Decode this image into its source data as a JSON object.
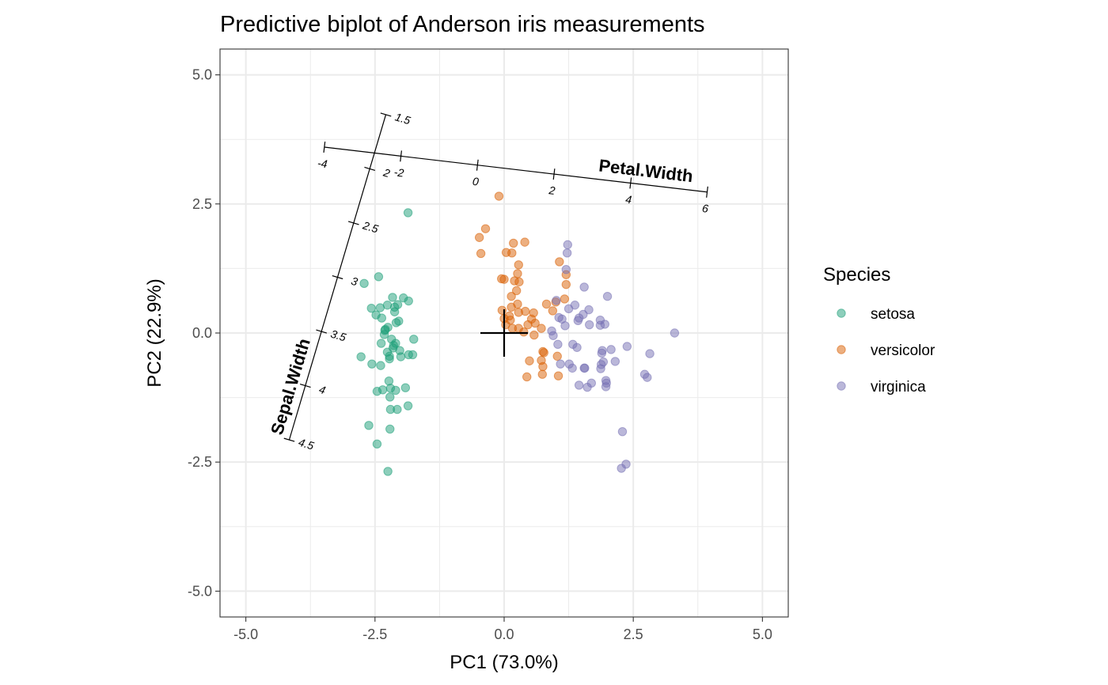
{
  "chart_data": {
    "type": "scatter",
    "title": "Predictive biplot of Anderson iris measurements",
    "xlabel": "PC1 (73.0%)",
    "ylabel": "PC2 (22.9%)",
    "xlim": [
      -5.5,
      5.5
    ],
    "ylim": [
      -5.5,
      5.5
    ],
    "x_ticks": [
      -5.0,
      -2.5,
      0.0,
      2.5,
      5.0
    ],
    "x_tick_labels": [
      "-5.0",
      "-2.5",
      "0.0",
      "2.5",
      "5.0"
    ],
    "y_ticks": [
      -5.0,
      -2.5,
      0.0,
      2.5,
      5.0
    ],
    "y_tick_labels": [
      "-5.0",
      "-2.5",
      "0.0",
      "2.5",
      "5.0"
    ],
    "grid": true,
    "legend": {
      "title": "Species",
      "placement": "right"
    },
    "series": [
      {
        "name": "setosa",
        "color": "#1b9e77",
        "points": [
          [
            -2.25,
            0.11
          ],
          [
            -2.16,
            0.69
          ],
          [
            -2.4,
            0.49
          ],
          [
            -2.71,
            0.96
          ],
          [
            -2.57,
            0.48
          ],
          [
            -2.37,
            0.29
          ],
          [
            -2.26,
            0.54
          ],
          [
            -2.06,
            0.55
          ],
          [
            -2.12,
            0.5
          ],
          [
            -1.95,
            0.68
          ],
          [
            -1.85,
            0.62
          ],
          [
            -2.43,
            1.09
          ],
          [
            -2.48,
            0.35
          ],
          [
            -2.3,
            0.07
          ],
          [
            -2.18,
            -0.12
          ],
          [
            -2.1,
            -0.2
          ],
          [
            -1.85,
            -0.42
          ],
          [
            -2.02,
            -0.34
          ],
          [
            -1.77,
            -0.42
          ],
          [
            -1.75,
            -0.12
          ],
          [
            -2.32,
            -0.03
          ],
          [
            -2.38,
            -0.2
          ],
          [
            -2.26,
            -0.37
          ],
          [
            -2.22,
            -0.5
          ],
          [
            -2.22,
            -0.45
          ],
          [
            -2.14,
            -0.24
          ],
          [
            -2.0,
            -0.46
          ],
          [
            -2.56,
            -0.6
          ],
          [
            -2.39,
            -0.63
          ],
          [
            -2.77,
            -0.46
          ],
          [
            -2.46,
            -1.13
          ],
          [
            -2.23,
            -0.93
          ],
          [
            -2.2,
            -1.07
          ],
          [
            -2.35,
            -1.1
          ],
          [
            -2.21,
            -1.24
          ],
          [
            -1.91,
            -1.06
          ],
          [
            -2.1,
            -1.11
          ],
          [
            -2.07,
            -1.48
          ],
          [
            -2.2,
            -1.48
          ],
          [
            -1.86,
            -1.41
          ],
          [
            -2.62,
            -1.79
          ],
          [
            -2.21,
            -1.86
          ],
          [
            -2.46,
            -2.15
          ],
          [
            -2.25,
            -2.68
          ],
          [
            -1.86,
            2.33
          ],
          [
            -2.12,
            0.41
          ],
          [
            -2.04,
            0.23
          ],
          [
            -2.31,
            0.05
          ],
          [
            -2.15,
            -0.29
          ],
          [
            -2.09,
            0.2
          ]
        ]
      },
      {
        "name": "versicolor",
        "color": "#d95f02",
        "points": [
          [
            -0.1,
            2.65
          ],
          [
            -0.36,
            2.02
          ],
          [
            -0.48,
            1.85
          ],
          [
            -0.45,
            1.54
          ],
          [
            0.18,
            1.74
          ],
          [
            0.4,
            1.76
          ],
          [
            0.04,
            1.56
          ],
          [
            0.15,
            1.55
          ],
          [
            0.28,
            1.32
          ],
          [
            0.26,
            1.15
          ],
          [
            0.2,
            1.01
          ],
          [
            0.24,
            0.82
          ],
          [
            0.14,
            0.71
          ],
          [
            -0.05,
            1.05
          ],
          [
            0.0,
            1.04
          ],
          [
            0.29,
            0.99
          ],
          [
            0.26,
            0.56
          ],
          [
            0.14,
            0.5
          ],
          [
            0.28,
            0.4
          ],
          [
            0.1,
            0.33
          ],
          [
            -0.04,
            0.44
          ],
          [
            0.41,
            0.42
          ],
          [
            0.57,
            0.39
          ],
          [
            0.53,
            0.27
          ],
          [
            0.03,
            0.16
          ],
          [
            0.12,
            0.25
          ],
          [
            0.0,
            0.28
          ],
          [
            0.16,
            0.09
          ],
          [
            0.28,
            0.09
          ],
          [
            0.46,
            0.16
          ],
          [
            0.6,
            0.19
          ],
          [
            0.72,
            0.09
          ],
          [
            0.38,
            0.02
          ],
          [
            0.58,
            -0.04
          ],
          [
            0.75,
            -0.36
          ],
          [
            0.49,
            -0.54
          ],
          [
            0.72,
            -0.53
          ],
          [
            0.77,
            -0.38
          ],
          [
            1.03,
            -0.45
          ],
          [
            0.75,
            -0.65
          ],
          [
            0.74,
            -0.8
          ],
          [
            1.05,
            -0.83
          ],
          [
            0.44,
            -0.85
          ],
          [
            1.2,
            0.94
          ],
          [
            1.2,
            1.13
          ],
          [
            1.07,
            1.38
          ],
          [
            1.17,
            0.66
          ],
          [
            1.0,
            0.6
          ],
          [
            0.82,
            0.56
          ],
          [
            0.94,
            0.43
          ]
        ]
      },
      {
        "name": "virginica",
        "color": "#7570b3",
        "points": [
          [
            1.23,
            1.71
          ],
          [
            1.22,
            1.55
          ],
          [
            1.2,
            1.23
          ],
          [
            1.55,
            0.89
          ],
          [
            1.64,
            0.45
          ],
          [
            1.37,
            0.54
          ],
          [
            1.53,
            0.36
          ],
          [
            1.45,
            0.29
          ],
          [
            1.25,
            0.47
          ],
          [
            1.01,
            0.63
          ],
          [
            1.12,
            0.27
          ],
          [
            1.06,
            0.3
          ],
          [
            1.18,
            0.14
          ],
          [
            0.92,
            0.04
          ],
          [
            0.95,
            -0.05
          ],
          [
            1.04,
            -0.22
          ],
          [
            1.33,
            -0.22
          ],
          [
            1.41,
            -0.28
          ],
          [
            1.65,
            0.16
          ],
          [
            1.86,
            0.25
          ],
          [
            1.86,
            0.15
          ],
          [
            1.95,
            0.17
          ],
          [
            2.0,
            0.71
          ],
          [
            1.9,
            -0.34
          ],
          [
            1.89,
            -0.39
          ],
          [
            1.88,
            -0.61
          ],
          [
            1.87,
            -0.69
          ],
          [
            1.92,
            -0.56
          ],
          [
            2.07,
            -0.32
          ],
          [
            2.15,
            -0.55
          ],
          [
            2.38,
            -0.26
          ],
          [
            2.82,
            -0.4
          ],
          [
            3.3,
            0.0
          ],
          [
            2.72,
            -0.8
          ],
          [
            2.77,
            -0.86
          ],
          [
            1.97,
            -0.92
          ],
          [
            1.98,
            -0.97
          ],
          [
            1.97,
            -1.04
          ],
          [
            1.61,
            -1.05
          ],
          [
            1.69,
            -0.97
          ],
          [
            1.45,
            -1.01
          ],
          [
            1.56,
            -0.68
          ],
          [
            1.32,
            -0.68
          ],
          [
            1.26,
            -0.6
          ],
          [
            1.09,
            -0.6
          ],
          [
            1.55,
            -0.68
          ],
          [
            2.29,
            -1.91
          ],
          [
            2.36,
            -2.54
          ],
          [
            2.27,
            -2.62
          ],
          [
            1.43,
            0.24
          ]
        ]
      }
    ],
    "center_marker": {
      "x": 0,
      "y": 0,
      "symbol": "cross"
    },
    "biplot_axes": [
      {
        "name": "Petal.Width",
        "tick_labels": [
          "-4",
          "-2",
          "0",
          "2",
          "4",
          "6"
        ],
        "tick_values": [
          -4,
          -2,
          0,
          2,
          4,
          6
        ],
        "start": [
          -3.48,
          3.6
        ],
        "end": [
          3.93,
          2.73
        ]
      },
      {
        "name": "Sepal.Width",
        "tick_labels": [
          "1.5",
          "2",
          "2.5",
          "3",
          "3.5",
          "4",
          "4.5"
        ],
        "tick_values": [
          1.5,
          2.0,
          2.5,
          3.0,
          3.5,
          4.0,
          4.5
        ],
        "start": [
          -2.29,
          4.23
        ],
        "end": [
          -4.16,
          -2.07
        ]
      }
    ]
  }
}
